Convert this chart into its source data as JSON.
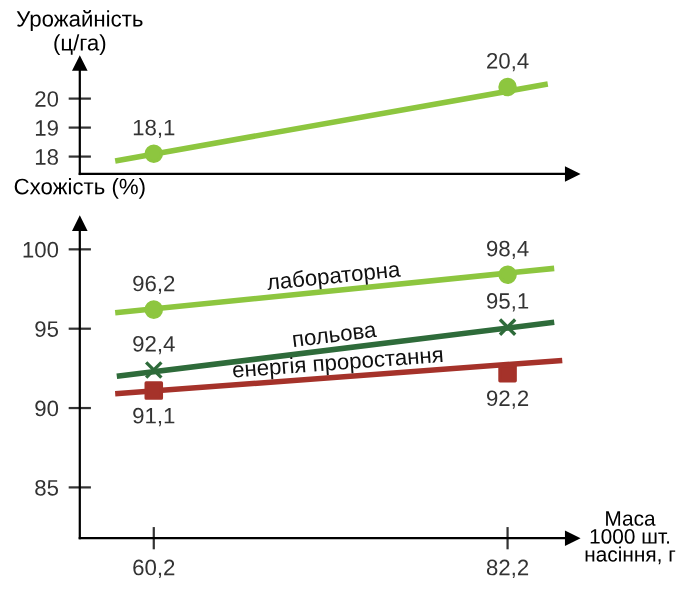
{
  "chart_data": [
    {
      "type": "line",
      "ylabel": "Урожайність\n(ц/га)",
      "xlim": [
        55.6,
        86.2
      ],
      "ylim": [
        17.4,
        21.2
      ],
      "yticks": [
        18,
        19,
        20
      ],
      "tick_labels": "y",
      "grid": false,
      "legend": false,
      "series": [
        {
          "color": "#8dc63f",
          "x": [
            57.8,
            84.7
          ],
          "values": [
            17.85,
            20.5
          ],
          "marker": "none"
        },
        {
          "type": "scatter",
          "color": "#8dc63f",
          "x": [
            60.2,
            82.2
          ],
          "values": [
            18.1,
            20.4
          ],
          "marker": "circle",
          "value_labels": [
            "18,1",
            "20,4"
          ]
        }
      ]
    },
    {
      "type": "line",
      "ylabel": "Схожість (%)",
      "xlabel": "Маса\n1000 шт.\nнасіння, г",
      "xlim": [
        55.6,
        86.2
      ],
      "ylim": [
        81.8,
        101.6
      ],
      "yticks": [
        85,
        90,
        95,
        100
      ],
      "xticks": [
        {
          "value": 60.2,
          "label": "60,2"
        },
        {
          "value": 82.2,
          "label": "82,2"
        }
      ],
      "grid": false,
      "legend": false,
      "series": [
        {
          "name": "лабораторна",
          "color": "#8dc63f",
          "x": [
            57.8,
            85.1
          ],
          "values": [
            96.0,
            98.8
          ],
          "marker": "none"
        },
        {
          "type": "scatter",
          "color": "#8dc63f",
          "x": [
            60.2,
            82.2
          ],
          "values": [
            96.2,
            98.4
          ],
          "marker": "circle",
          "value_labels": [
            "96,2",
            "98,4"
          ]
        },
        {
          "name": "польова",
          "color": "#2e6b3a",
          "x": [
            57.9,
            85.1
          ],
          "values": [
            92.0,
            95.4
          ],
          "marker": "none"
        },
        {
          "type": "scatter",
          "color": "#2e6b3a",
          "x": [
            60.2,
            82.2
          ],
          "values": [
            92.4,
            95.1
          ],
          "marker": "cross",
          "value_labels": [
            "92,4",
            "95,1"
          ]
        },
        {
          "name": "енергія проростання",
          "color": "#a5322a",
          "x": [
            57.8,
            85.6
          ],
          "values": [
            90.9,
            93.0
          ],
          "marker": "none"
        },
        {
          "type": "scatter",
          "color": "#a5322a",
          "x": [
            60.2,
            82.2
          ],
          "values": [
            91.1,
            92.2
          ],
          "marker": "square",
          "value_labels": [
            "91,1",
            "92,2"
          ]
        }
      ]
    }
  ]
}
